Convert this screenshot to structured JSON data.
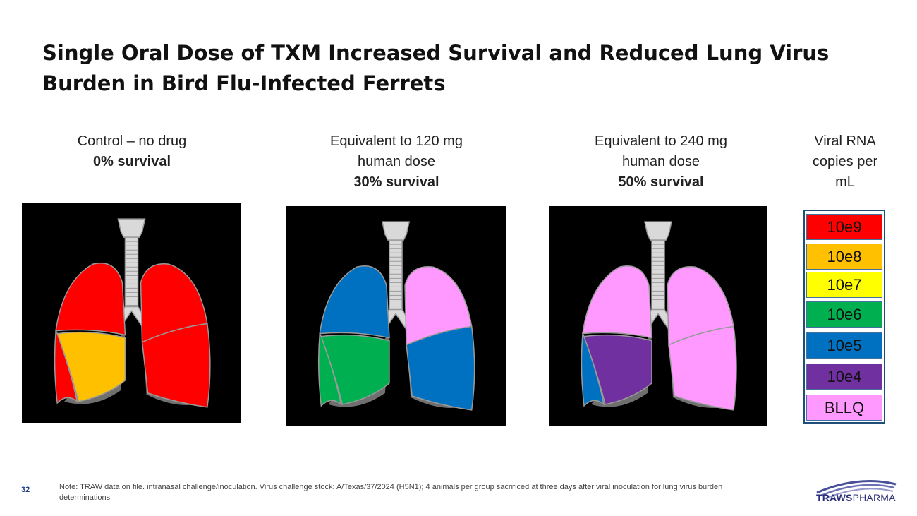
{
  "title": {
    "line1": "Single Oral Dose of TXM Increased Survival and Reduced Lung Virus",
    "line2": "Burden in Bird Flu-Infected Ferrets"
  },
  "panels": [
    {
      "line1": "Control – no drug",
      "line2": "",
      "survival": "0% survival",
      "lobes": {
        "left_upper": "#ff0000",
        "left_lower": "#ffc000",
        "left_side": "#ff0000",
        "right_upper": "#ff0000",
        "right_lower": "#ff0000"
      }
    },
    {
      "line1": "Equivalent to 120 mg",
      "line2": "human dose",
      "survival": "30% survival",
      "lobes": {
        "left_upper": "#0070c0",
        "left_lower": "#00b050",
        "left_side": "#00b050",
        "right_upper": "#ff99ff",
        "right_lower": "#0070c0"
      }
    },
    {
      "line1": "Equivalent to 240 mg",
      "line2": "human dose",
      "survival": "50% survival",
      "lobes": {
        "left_upper": "#ff99ff",
        "left_lower": "#7030a0",
        "left_side": "#0070c0",
        "right_upper": "#ff99ff",
        "right_lower": "#ff99ff"
      }
    }
  ],
  "legend": {
    "title_line1": "Viral RNA",
    "title_line2": "copies per",
    "title_line3": "mL",
    "items": [
      {
        "label": "10e9",
        "color": "#ff0000"
      },
      {
        "label": "10e8",
        "color": "#ffc000"
      },
      {
        "label": "10e7",
        "color": "#ffff00"
      },
      {
        "label": "10e6",
        "color": "#00b050"
      },
      {
        "label": "10e5",
        "color": "#0070c0"
      },
      {
        "label": "10e4",
        "color": "#7030a0"
      },
      {
        "label": "BLLQ",
        "color": "#ff99ff"
      }
    ]
  },
  "footer": {
    "page_number": "32",
    "note": "Note: TRAW data on file. intranasal challenge/inoculation. Virus challenge stock: A/Texas/37/2024 (H5N1); 4 animals per group sacrificed at three days after viral inoculation for lung virus burden determinations",
    "logo_bold": "TRAWS",
    "logo_light": "PHARMA"
  }
}
